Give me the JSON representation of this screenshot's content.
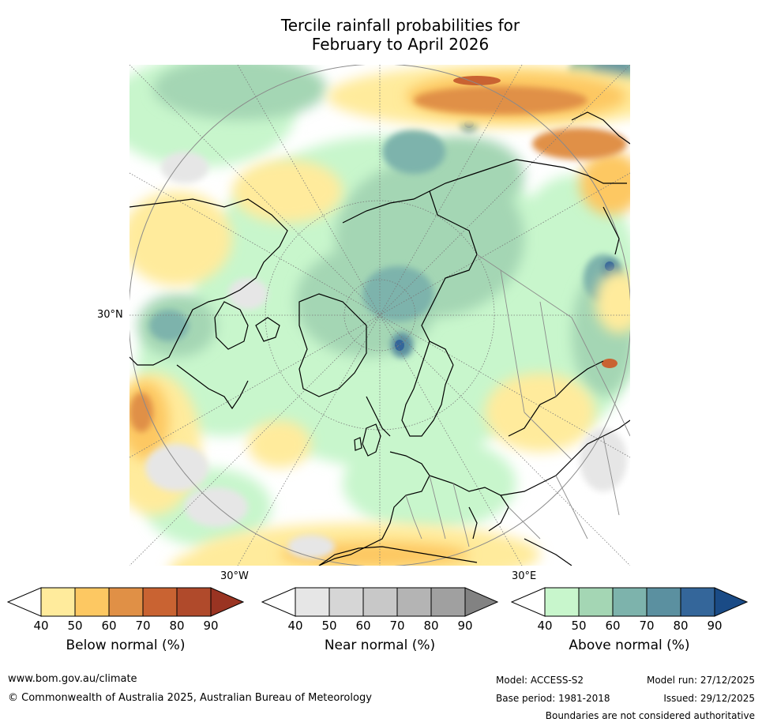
{
  "title": {
    "line1": "Tercile rainfall probabilities for",
    "line2": "February to April 2026"
  },
  "map": {
    "lat_label": "30°N",
    "lon_label_w": "30°W",
    "lon_label_e": "30°E"
  },
  "colorbars": [
    {
      "name": "below",
      "label": "Below normal (%)",
      "ticks": [
        "40",
        "50",
        "60",
        "70",
        "80",
        "90"
      ],
      "colors": [
        "#ffffff",
        "#ffeb9c",
        "#fdc862",
        "#e09046",
        "#c96332",
        "#b04a2b",
        "#9a3422"
      ]
    },
    {
      "name": "near",
      "label": "Near normal (%)",
      "ticks": [
        "40",
        "50",
        "60",
        "70",
        "80",
        "90"
      ],
      "colors": [
        "#ffffff",
        "#e6e6e6",
        "#d6d6d6",
        "#c8c8c8",
        "#b4b4b4",
        "#a0a0a0",
        "#828282"
      ]
    },
    {
      "name": "above",
      "label": "Above normal (%)",
      "ticks": [
        "40",
        "50",
        "60",
        "70",
        "80",
        "90"
      ],
      "colors": [
        "#ffffff",
        "#c8f6cc",
        "#a4d6b4",
        "#7db3ac",
        "#5b90a0",
        "#34669a",
        "#1a4b86"
      ]
    }
  ],
  "footer": {
    "website": "www.bom.gov.au/climate",
    "copyright": "© Commonwealth of Australia 2025, Australian Bureau of Meteorology",
    "model": "Model: ACCESS-S2",
    "model_run": "Model run: 27/12/2025",
    "base_period": "Base period: 1981-2018",
    "issued": "Issued: 29/12/2025",
    "disclaimer": "Boundaries are not considered authoritative"
  }
}
